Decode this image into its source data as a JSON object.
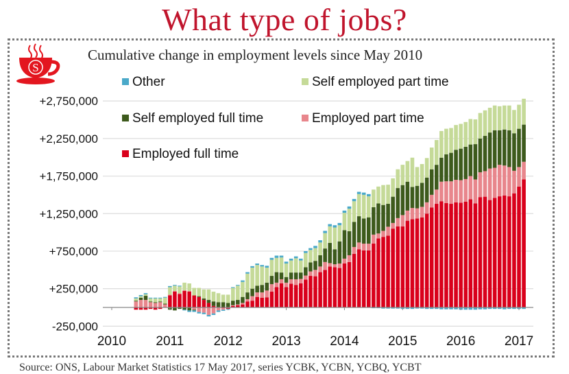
{
  "header": {
    "title": "What type of jobs?",
    "subtitle": "Cumulative change in employment levels since May 2010",
    "source": "Source: ONS, Labour Market Statistics 17 May 2017, series YCBK, YCBN, YCBQ, YCBT",
    "logo_letter": "S"
  },
  "colors": {
    "title": "#c0142c",
    "logo": "#e3161f"
  },
  "chart_data": {
    "type": "bar",
    "stacked": true,
    "title": "Cumulative change in employment levels since May 2010",
    "xlabel": "",
    "ylabel": "",
    "ylim": [
      -250000,
      2750000
    ],
    "yticks": [
      -250000,
      250000,
      750000,
      1250000,
      1750000,
      2250000,
      2750000
    ],
    "ytick_labels": [
      "-250,000",
      "+250,000",
      "+750,000",
      "+1,250,000",
      "+1,750,000",
      "+2,250,000",
      "+2,750,000"
    ],
    "xtick_labels": [
      "2010",
      "2011",
      "2012",
      "2013",
      "2014",
      "2015",
      "2016",
      "2017"
    ],
    "grid": true,
    "legend_placement": "top-left",
    "unit_multiplier": 1000,
    "categories": [
      "2010-06",
      "2010-07",
      "2010-08",
      "2010-09",
      "2010-10",
      "2010-11",
      "2010-12",
      "2011-01",
      "2011-02",
      "2011-03",
      "2011-04",
      "2011-05",
      "2011-06",
      "2011-07",
      "2011-08",
      "2011-09",
      "2011-10",
      "2011-11",
      "2011-12",
      "2012-01",
      "2012-02",
      "2012-03",
      "2012-04",
      "2012-05",
      "2012-06",
      "2012-07",
      "2012-08",
      "2012-09",
      "2012-10",
      "2012-11",
      "2012-12",
      "2013-01",
      "2013-02",
      "2013-03",
      "2013-04",
      "2013-05",
      "2013-06",
      "2013-07",
      "2013-08",
      "2013-09",
      "2013-10",
      "2013-11",
      "2013-12",
      "2014-01",
      "2014-02",
      "2014-03",
      "2014-04",
      "2014-05",
      "2014-06",
      "2014-07",
      "2014-08",
      "2014-09",
      "2014-10",
      "2014-11",
      "2014-12",
      "2015-01",
      "2015-02",
      "2015-03",
      "2015-04",
      "2015-05",
      "2015-06",
      "2015-07",
      "2015-08",
      "2015-09",
      "2015-10",
      "2015-11",
      "2015-12",
      "2016-01",
      "2016-02",
      "2016-03",
      "2016-04",
      "2016-05",
      "2016-06",
      "2016-07",
      "2016-08",
      "2016-09",
      "2016-10",
      "2016-11",
      "2016-12",
      "2017-01",
      "2017-02"
    ],
    "series": [
      {
        "name": "Employed full time",
        "color": "#d9001b",
        "values": [
          -30,
          -30,
          -30,
          -20,
          -30,
          -20,
          -5,
          160,
          210,
          180,
          220,
          210,
          160,
          140,
          100,
          60,
          20,
          0,
          -10,
          -20,
          20,
          30,
          40,
          80,
          90,
          140,
          130,
          135,
          210,
          270,
          320,
          270,
          315,
          300,
          320,
          370,
          420,
          415,
          470,
          500,
          545,
          535,
          525,
          585,
          605,
          715,
          775,
          760,
          760,
          850,
          920,
          940,
          955,
          1050,
          1080,
          1080,
          1155,
          1175,
          1185,
          1200,
          1250,
          1330,
          1380,
          1415,
          1390,
          1380,
          1400,
          1395,
          1410,
          1440,
          1385,
          1470,
          1475,
          1430,
          1460,
          1480,
          1490,
          1480,
          1520,
          1610,
          1705
        ]
      },
      {
        "name": "Employed part time",
        "color": "#e8868c",
        "values": [
          80,
          100,
          100,
          70,
          60,
          70,
          40,
          10,
          10,
          10,
          10,
          10,
          -30,
          -60,
          -70,
          -100,
          -80,
          -40,
          -20,
          0,
          10,
          10,
          20,
          30,
          60,
          60,
          70,
          90,
          100,
          60,
          55,
          60,
          60,
          75,
          60,
          55,
          60,
          85,
          75,
          105,
          45,
          40,
          60,
          65,
          90,
          90,
          90,
          90,
          90,
          120,
          65,
          80,
          120,
          75,
          110,
          150,
          135,
          150,
          135,
          140,
          150,
          170,
          190,
          260,
          290,
          300,
          300,
          300,
          300,
          310,
          320,
          330,
          340,
          420,
          400,
          420,
          400,
          390,
          300,
          260,
          235
        ]
      },
      {
        "name": "Self employed full time",
        "color": "#3d5a1c",
        "values": [
          10,
          30,
          55,
          10,
          10,
          10,
          10,
          -30,
          -40,
          -20,
          -30,
          -40,
          -10,
          10,
          20,
          40,
          60,
          70,
          70,
          60,
          60,
          60,
          80,
          90,
          100,
          90,
          100,
          105,
          110,
          140,
          90,
          75,
          90,
          90,
          85,
          110,
          120,
          120,
          150,
          180,
          270,
          200,
          295,
          380,
          320,
          335,
          350,
          335,
          350,
          365,
          400,
          345,
          305,
          350,
          400,
          400,
          385,
          280,
          300,
          320,
          330,
          340,
          330,
          320,
          360,
          380,
          400,
          420,
          430,
          420,
          470,
          450,
          470,
          480,
          500,
          460,
          480,
          490,
          500,
          510,
          495
        ]
      },
      {
        "name": "Self employed part time",
        "color": "#c5da98",
        "values": [
          30,
          20,
          20,
          40,
          50,
          40,
          80,
          100,
          70,
          90,
          100,
          100,
          100,
          110,
          120,
          140,
          130,
          120,
          100,
          110,
          170,
          190,
          200,
          250,
          280,
          275,
          245,
          200,
          215,
          190,
          200,
          180,
          160,
          190,
          160,
          190,
          165,
          170,
          170,
          205,
          220,
          290,
          215,
          230,
          300,
          275,
          295,
          315,
          280,
          235,
          225,
          265,
          255,
          245,
          250,
          270,
          275,
          390,
          250,
          250,
          260,
          290,
          330,
          355,
          340,
          330,
          330,
          330,
          330,
          340,
          330,
          340,
          340,
          330,
          330,
          320,
          320,
          330,
          310,
          320,
          345
        ]
      },
      {
        "name": "Other",
        "color": "#4aa9c9",
        "values": [
          15,
          15,
          15,
          10,
          10,
          10,
          10,
          15,
          10,
          10,
          -10,
          -20,
          -20,
          -20,
          -20,
          -20,
          -20,
          -20,
          -15,
          -10,
          10,
          10,
          20,
          20,
          20,
          20,
          20,
          25,
          25,
          30,
          25,
          25,
          25,
          25,
          25,
          25,
          25,
          30,
          30,
          30,
          30,
          30,
          30,
          30,
          30,
          30,
          30,
          30,
          30,
          -10,
          -10,
          -15,
          -15,
          -15,
          -15,
          -20,
          -20,
          -20,
          -15,
          -15,
          -20,
          -20,
          -20,
          -25,
          -25,
          -25,
          -25,
          -30,
          -30,
          -30,
          -30,
          -25,
          -25,
          -20,
          -20,
          -20,
          -25,
          -20,
          -20,
          -20,
          -20
        ]
      }
    ],
    "legend": [
      {
        "label": "Other",
        "series": 4
      },
      {
        "label": "Self employed part time",
        "series": 3
      },
      {
        "label": "Self employed full time",
        "series": 2
      },
      {
        "label": "Employed part time",
        "series": 1
      },
      {
        "label": "Employed full time",
        "series": 0
      }
    ]
  }
}
